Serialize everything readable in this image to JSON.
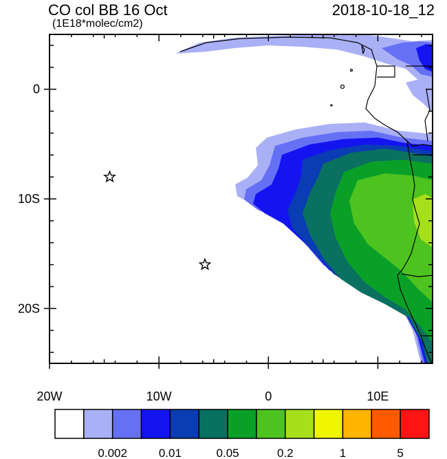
{
  "header": {
    "title": "CO col BB 16 Oct",
    "subtitle": "(1E18*molec/cm2)",
    "timestamp": "2018-10-18_12"
  },
  "map": {
    "lon_range": [
      -20,
      15
    ],
    "lat_range": [
      -25,
      5
    ],
    "lon_labels": [
      "20W",
      "10W",
      "0",
      "10E"
    ],
    "lat_labels": [
      "0",
      "10S",
      "20S"
    ],
    "markers": [
      {
        "type": "star",
        "lon": -14.5,
        "lat": -8.0
      },
      {
        "type": "star",
        "lon": -5.8,
        "lat": -16.0
      }
    ]
  },
  "colorbar": {
    "colors": [
      "#ffffff",
      "#aab0f5",
      "#6670f5",
      "#1414f0",
      "#0a3cb4",
      "#0a7060",
      "#0aa028",
      "#4dc31f",
      "#a6e01b",
      "#f0f500",
      "#ffb400",
      "#ff5a00",
      "#ff1414"
    ],
    "labels": [
      "0.002",
      "0.01",
      "0.05",
      "0.2",
      "1",
      "5"
    ]
  }
}
